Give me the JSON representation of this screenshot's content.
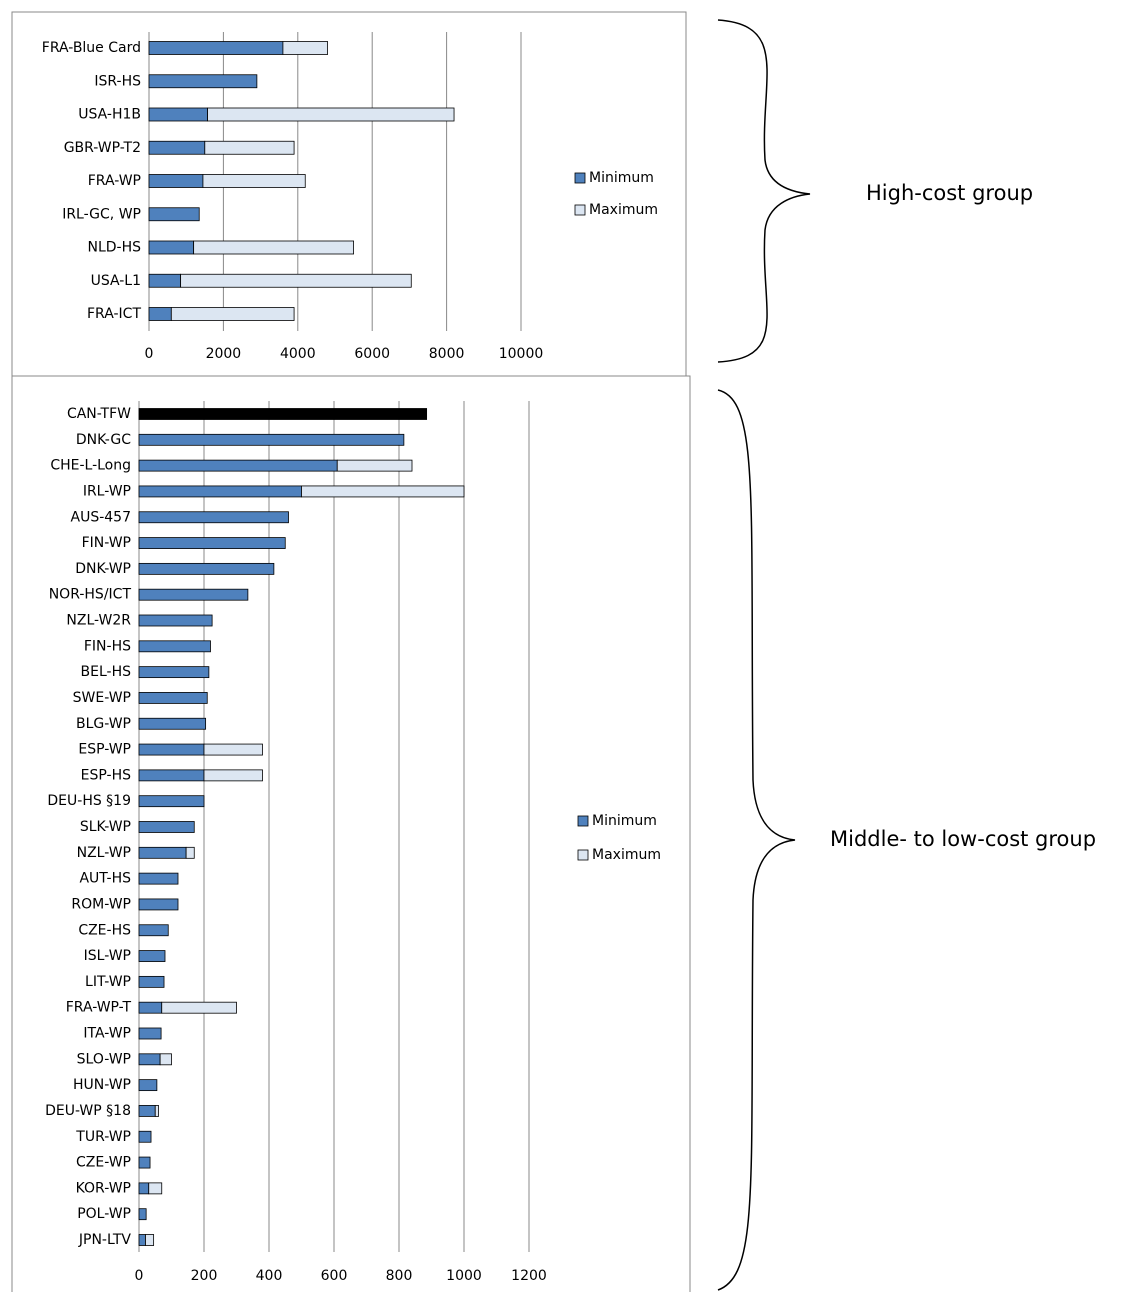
{
  "chart_data": [
    {
      "type": "bar",
      "orientation": "horizontal",
      "stacked": true,
      "annotation": "High-cost group",
      "categories": [
        "FRA-Blue Card",
        "ISR-HS",
        "USA-H1B",
        "GBR-WP-T2",
        "FRA-WP",
        "IRL-GC, WP",
        "NLD-HS",
        "USA-L1",
        "FRA-ICT"
      ],
      "series": [
        {
          "name": "Minimum",
          "color": "#4f81bd",
          "values": [
            3600,
            2900,
            1575,
            1500,
            1450,
            1350,
            1200,
            850,
            600
          ]
        },
        {
          "name": "Maximum",
          "color": "#dce6f2",
          "values": [
            1200,
            null,
            6625,
            2400,
            2750,
            null,
            4300,
            6200,
            3300
          ]
        }
      ],
      "xlim": [
        0,
        10000
      ],
      "xticks": [
        0,
        2000,
        4000,
        6000,
        8000,
        10000
      ],
      "grid": true,
      "legend": "right"
    },
    {
      "type": "bar",
      "orientation": "horizontal",
      "stacked": true,
      "annotation": "Middle- to low-cost group",
      "categories": [
        "CAN-TFW",
        "DNK-GC",
        "CHE-L-Long",
        "IRL-WP",
        "AUS-457",
        "FIN-WP",
        "DNK-WP",
        "NOR-HS/ICT",
        "NZL-W2R",
        "FIN-HS",
        "BEL-HS",
        "SWE-WP",
        "BLG-WP",
        "ESP-WP",
        "ESP-HS",
        "DEU-HS §19",
        "SLK-WP",
        "NZL-WP",
        "AUT-HS",
        "ROM-WP",
        "CZE-HS",
        "ISL-WP",
        "LIT-WP",
        "FRA-WP-T",
        "ITA-WP",
        "SLO-WP",
        "HUN-WP",
        "DEU-WP §18",
        "TUR-WP",
        "CZE-WP",
        "KOR-WP",
        "POL-WP",
        "JPN-LTV"
      ],
      "series": [
        {
          "name": "Minimum",
          "color": "#4f81bd",
          "values": [
            885,
            815,
            610,
            500,
            460,
            450,
            415,
            335,
            225,
            220,
            215,
            210,
            205,
            200,
            200,
            200,
            170,
            145,
            120,
            120,
            90,
            80,
            77,
            70,
            68,
            65,
            55,
            50,
            37,
            34,
            30,
            22,
            20
          ]
        },
        {
          "name": "Maximum",
          "color": "#dce6f2",
          "values": [
            null,
            null,
            230,
            500,
            null,
            null,
            null,
            null,
            null,
            null,
            null,
            null,
            null,
            180,
            180,
            null,
            null,
            25,
            null,
            null,
            null,
            null,
            null,
            230,
            null,
            35,
            null,
            10,
            null,
            null,
            40,
            null,
            25
          ]
        }
      ],
      "highlight": {
        "index": 0,
        "color": "#000000"
      },
      "xlim": [
        0,
        1200
      ],
      "xticks": [
        0,
        200,
        400,
        600,
        800,
        1000,
        1200
      ],
      "grid": true,
      "legend": "right"
    }
  ]
}
